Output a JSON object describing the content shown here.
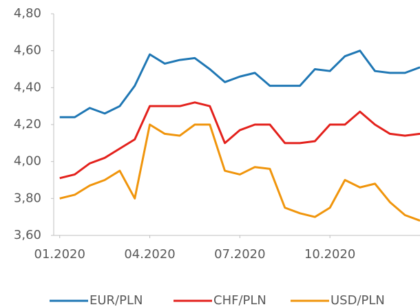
{
  "chart_data": {
    "type": "line",
    "x": [
      0,
      0.5,
      1,
      1.5,
      2,
      2.5,
      3,
      3.5,
      4,
      4.5,
      5,
      5.5,
      6,
      6.5,
      7,
      7.5,
      8,
      8.5,
      9,
      9.5,
      10,
      10.5,
      11,
      11.5,
      12
    ],
    "series": [
      {
        "name": "EUR/PLN",
        "color": "#1f77b4",
        "values": [
          4.24,
          4.24,
          4.29,
          4.26,
          4.3,
          4.41,
          4.58,
          4.53,
          4.55,
          4.56,
          4.5,
          4.43,
          4.46,
          4.48,
          4.41,
          4.41,
          4.41,
          4.5,
          4.49,
          4.57,
          4.6,
          4.49,
          4.48,
          4.48,
          4.51
        ]
      },
      {
        "name": "CHF/PLN",
        "color": "#e3211c",
        "values": [
          3.91,
          3.93,
          3.99,
          4.02,
          4.07,
          4.12,
          4.3,
          4.3,
          4.3,
          4.32,
          4.3,
          4.1,
          4.17,
          4.2,
          4.2,
          4.1,
          4.1,
          4.11,
          4.2,
          4.2,
          4.27,
          4.2,
          4.15,
          4.14,
          4.15
        ]
      },
      {
        "name": "USD/PLN",
        "color": "#f0950c",
        "values": [
          3.8,
          3.82,
          3.87,
          3.9,
          3.95,
          3.8,
          4.2,
          4.15,
          4.14,
          4.2,
          4.2,
          3.95,
          3.93,
          3.97,
          3.96,
          3.75,
          3.72,
          3.7,
          3.75,
          3.9,
          3.86,
          3.88,
          3.78,
          3.71,
          3.68
        ]
      }
    ],
    "xlim": [
      -0.2,
      12
    ],
    "xticks": [
      {
        "value": 0,
        "label": "01.2020"
      },
      {
        "value": 3,
        "label": "04.2020"
      },
      {
        "value": 6,
        "label": "07.2020"
      },
      {
        "value": 9,
        "label": "10.2020"
      }
    ],
    "ylim": [
      3.6,
      4.8
    ],
    "yticks": [
      {
        "value": 3.6,
        "label": "3,60"
      },
      {
        "value": 3.8,
        "label": "3,80"
      },
      {
        "value": 4.0,
        "label": "4,00"
      },
      {
        "value": 4.2,
        "label": "4,20"
      },
      {
        "value": 4.4,
        "label": "4,40"
      },
      {
        "value": 4.6,
        "label": "4,60"
      },
      {
        "value": 4.8,
        "label": "4,80"
      }
    ],
    "grid": false,
    "legend": "bottom"
  }
}
